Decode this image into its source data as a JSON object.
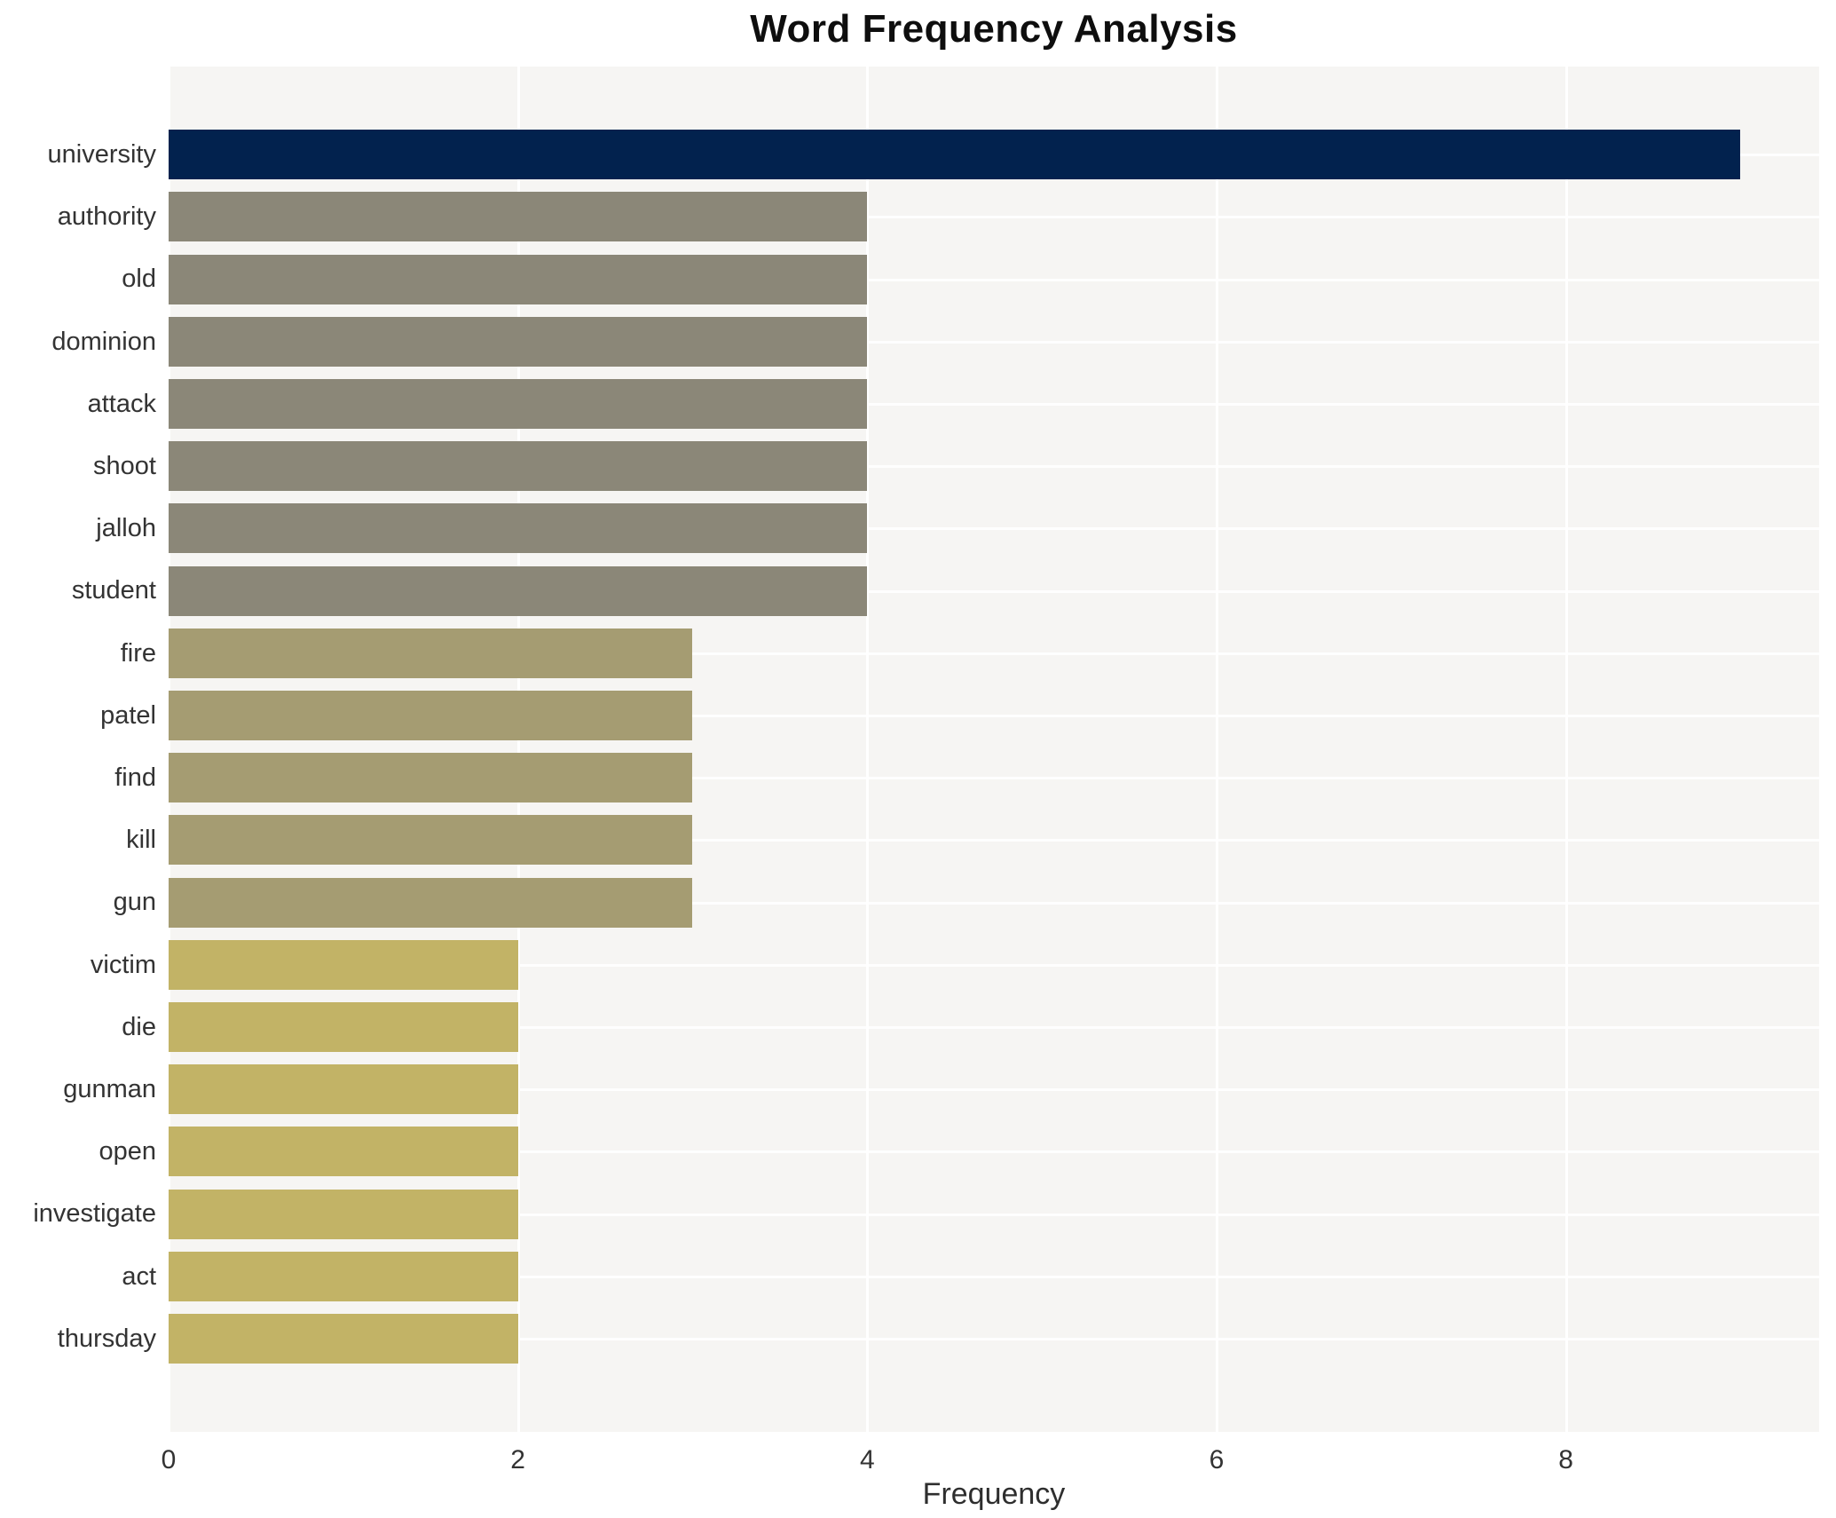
{
  "chart_data": {
    "type": "bar",
    "orientation": "horizontal",
    "title": "Word Frequency Analysis",
    "xlabel": "Frequency",
    "ylabel": "",
    "categories": [
      "university",
      "authority",
      "old",
      "dominion",
      "attack",
      "shoot",
      "jalloh",
      "student",
      "fire",
      "patel",
      "find",
      "kill",
      "gun",
      "victim",
      "die",
      "gunman",
      "open",
      "investigate",
      "act",
      "thursday"
    ],
    "values": [
      9,
      4,
      4,
      4,
      4,
      4,
      4,
      4,
      3,
      3,
      3,
      3,
      3,
      2,
      2,
      2,
      2,
      2,
      2,
      2
    ],
    "bar_colors": [
      "#02224e",
      "#8b8778",
      "#8b8778",
      "#8b8778",
      "#8b8778",
      "#8b8778",
      "#8b8778",
      "#8b8778",
      "#a59c72",
      "#a59c72",
      "#a59c72",
      "#a59c72",
      "#a59c72",
      "#c2b366",
      "#c2b366",
      "#c2b366",
      "#c2b366",
      "#c2b366",
      "#c2b366",
      "#c2b366"
    ],
    "xticks": [
      0,
      2,
      4,
      6,
      8
    ],
    "xlim": [
      0,
      9.45
    ],
    "grid": "on",
    "legend": "none",
    "plot_background": "#f6f5f3",
    "grid_color": "#ffffff",
    "text_color": "#333333",
    "color_legend": {
      "frequency_9": "#02224e",
      "frequency_4": "#8b8778",
      "frequency_3": "#a59c72",
      "frequency_2": "#c2b366"
    }
  }
}
